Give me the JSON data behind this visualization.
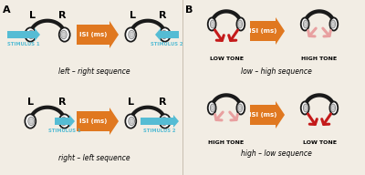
{
  "bg_color": "#f2ede4",
  "orange_color": "#e07820",
  "blue_color": "#55bcd4",
  "red_color": "#c41a1a",
  "pink_color": "#e8a0a0",
  "dark": "#1a1a1a",
  "label_A": "A",
  "label_B": "B",
  "text_lr": "left – right sequence",
  "text_rl": "right – left sequence",
  "text_lh": "low – high sequence",
  "text_hl": "high – low sequence",
  "isi_text": "ISI (ms)",
  "stimulus1": "STIMULUS 1",
  "stimulus2": "STIMULUS 2",
  "low_tone": "LOW TONE",
  "high_tone": "HIGH TONE",
  "L": "L",
  "R": "R"
}
